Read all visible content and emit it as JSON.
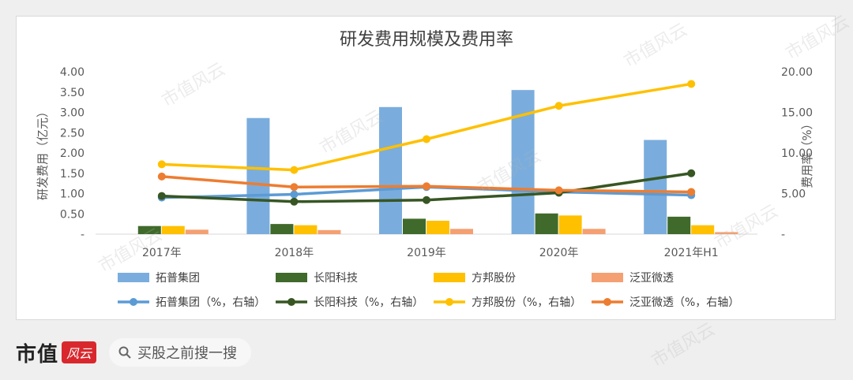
{
  "chart_data": {
    "type": "bar",
    "title": "研发费用规模及费用率",
    "ylabel_left": "研发费用（亿元）",
    "ylabel_right": "费用率（%）",
    "categories": [
      "2017年",
      "2018年",
      "2019年",
      "2020年",
      "2021年H1"
    ],
    "ylim_left": [
      0,
      4
    ],
    "yticks_left": [
      "-",
      "0.50",
      "1.00",
      "1.50",
      "2.00",
      "2.50",
      "3.00",
      "3.50",
      "4.00"
    ],
    "ylim_right": [
      0,
      20
    ],
    "yticks_right": [
      "-",
      "5.00",
      "10.00",
      "15.00",
      "20.00"
    ],
    "bar_series": [
      {
        "name": "拓普集团",
        "color": "#7aaddd",
        "values": [
          0,
          2.86,
          3.13,
          3.55,
          2.32
        ]
      },
      {
        "name": "长阳科技",
        "color": "#3f6a2b",
        "values": [
          0.2,
          0.25,
          0.38,
          0.51,
          0.43
        ]
      },
      {
        "name": "方邦股份",
        "color": "#ffc000",
        "values": [
          0.2,
          0.22,
          0.33,
          0.46,
          0.22
        ]
      },
      {
        "name": "泛亚微透",
        "color": "#f4a072",
        "values": [
          0.11,
          0.1,
          0.13,
          0.13,
          0.05
        ]
      }
    ],
    "line_series": [
      {
        "name": "拓普集团（%，右轴）",
        "color": "#5b9bd5",
        "values": [
          4.5,
          4.9,
          5.8,
          5.2,
          4.8
        ]
      },
      {
        "name": "长阳科技（%，右轴）",
        "color": "#375623",
        "values": [
          4.7,
          4.0,
          4.2,
          5.1,
          7.5
        ]
      },
      {
        "name": "方邦股份（%，右轴）",
        "color": "#ffc000",
        "values": [
          8.6,
          7.9,
          11.7,
          15.8,
          18.5
        ]
      },
      {
        "name": "泛亚微透（%，右轴）",
        "color": "#ed7d31",
        "values": [
          7.1,
          5.8,
          5.9,
          5.4,
          5.2
        ]
      }
    ],
    "legend_placement": "bottom",
    "grid": false
  },
  "footer": {
    "brand_text": "市值",
    "brand_logo": "风云",
    "search_placeholder": "买股之前搜一搜",
    "icon": "search-icon"
  },
  "watermark": "市值风云"
}
